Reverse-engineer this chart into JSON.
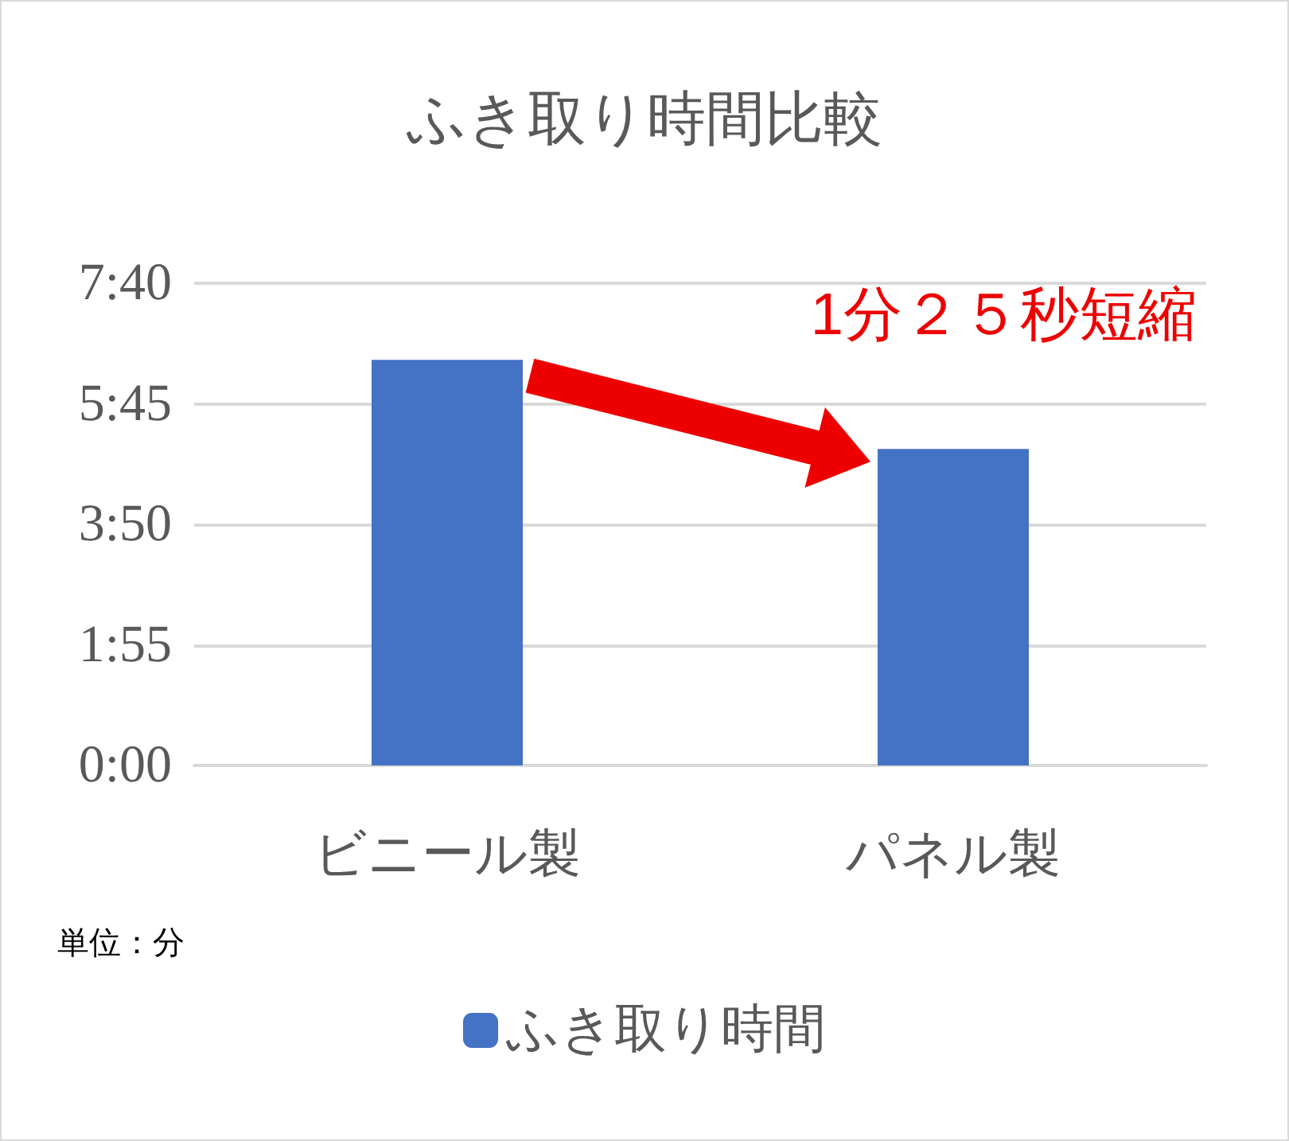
{
  "chart_data": {
    "type": "bar",
    "title": "ふき取り時間比較",
    "categories": [
      "ビニール製",
      "パネル製"
    ],
    "series": [
      {
        "name": "ふき取り時間",
        "color": "#4472c4",
        "values": [
          387,
          302
        ]
      }
    ],
    "ylim": [
      0,
      460
    ],
    "yticks": [
      {
        "value": 0,
        "label": "0:00"
      },
      {
        "value": 115,
        "label": "1:55"
      },
      {
        "value": 230,
        "label": "3:50"
      },
      {
        "value": 345,
        "label": "5:45"
      },
      {
        "value": 460,
        "label": "7:40"
      }
    ],
    "grid": "y",
    "legend": "bottom",
    "annotations": [
      "1分２５秒短縮",
      "単位：分"
    ]
  }
}
